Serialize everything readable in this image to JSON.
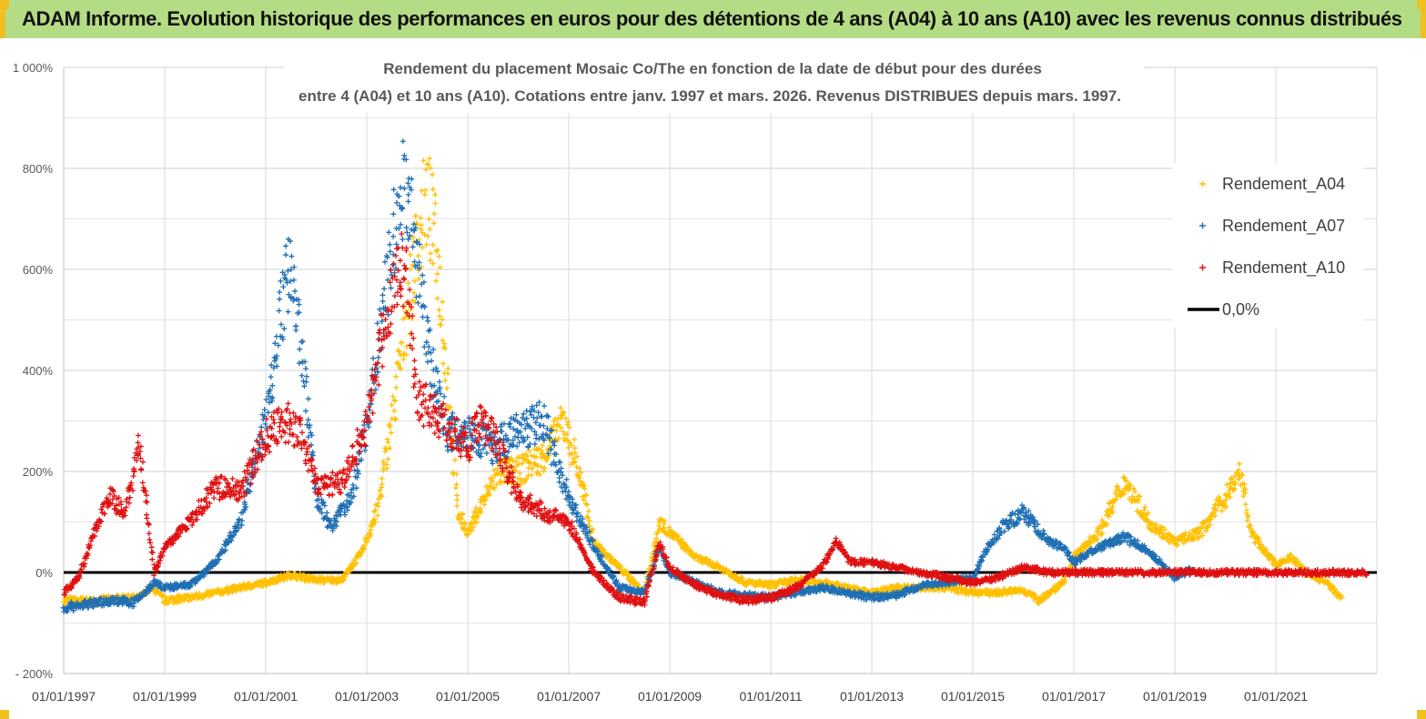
{
  "banner": {
    "text": "ADAM Informe. Evolution historique des performances en euros pour des détentions de 4 ans (A04) à 10 ans (A10) avec les revenus connus distribués"
  },
  "chart_data": {
    "type": "scatter",
    "title_lines": [
      "Rendement du placement Mosaic Co/The en fonction de la date de début pour des durées",
      "entre 4 (A04) et 10 ans (A10). Cotations entre janv. 1997 et mars. 2026. Revenus DISTRIBUES depuis mars. 1997."
    ],
    "xlabel": "",
    "ylabel": "",
    "xlim": [
      1997.0,
      2023.0
    ],
    "ylim": [
      -200,
      1000
    ],
    "x_ticks": [
      1997,
      1999,
      2001,
      2003,
      2005,
      2007,
      2009,
      2011,
      2013,
      2015,
      2017,
      2019,
      2021
    ],
    "x_tick_labels": [
      "01/01/1997",
      "01/01/1999",
      "01/01/2001",
      "01/01/2003",
      "01/01/2005",
      "01/01/2007",
      "01/01/2009",
      "01/01/2011",
      "01/01/2013",
      "01/01/2015",
      "01/01/2017",
      "01/01/2019",
      "01/01/2021"
    ],
    "y_ticks": [
      -200,
      0,
      200,
      400,
      600,
      800,
      1000
    ],
    "y_tick_labels": [
      "- 200%",
      "0%",
      "200%",
      "400%",
      "600%",
      "800%",
      "1 000%"
    ],
    "legend_position": "top-right",
    "series": [
      {
        "name": "Rendement_A04",
        "color": "#ffc000",
        "marker": "+",
        "points": [
          [
            1997.0,
            -55
          ],
          [
            1997.5,
            -58
          ],
          [
            1998.0,
            -52
          ],
          [
            1998.5,
            -50
          ],
          [
            1998.75,
            -30
          ],
          [
            1999.0,
            -55
          ],
          [
            1999.5,
            -50
          ],
          [
            2000.0,
            -40
          ],
          [
            2000.5,
            -30
          ],
          [
            2001.0,
            -20
          ],
          [
            2001.5,
            -5
          ],
          [
            2002.0,
            -15
          ],
          [
            2002.5,
            -15
          ],
          [
            2002.9,
            40
          ],
          [
            2003.2,
            120
          ],
          [
            2003.5,
            300
          ],
          [
            2003.8,
            520
          ],
          [
            2004.0,
            650
          ],
          [
            2004.2,
            750
          ],
          [
            2004.4,
            620
          ],
          [
            2004.6,
            380
          ],
          [
            2004.8,
            120
          ],
          [
            2005.0,
            80
          ],
          [
            2005.3,
            140
          ],
          [
            2005.6,
            200
          ],
          [
            2006.0,
            200
          ],
          [
            2006.5,
            230
          ],
          [
            2006.9,
            300
          ],
          [
            2007.2,
            200
          ],
          [
            2007.5,
            60
          ],
          [
            2008.0,
            10
          ],
          [
            2008.5,
            -40
          ],
          [
            2008.8,
            100
          ],
          [
            2009.0,
            80
          ],
          [
            2009.5,
            30
          ],
          [
            2010.0,
            10
          ],
          [
            2010.5,
            -20
          ],
          [
            2011.0,
            -25
          ],
          [
            2011.5,
            -15
          ],
          [
            2012.0,
            -20
          ],
          [
            2012.5,
            -30
          ],
          [
            2013.0,
            -40
          ],
          [
            2013.5,
            -30
          ],
          [
            2014.0,
            -30
          ],
          [
            2014.5,
            -30
          ],
          [
            2015.0,
            -40
          ],
          [
            2015.5,
            -40
          ],
          [
            2016.0,
            -35
          ],
          [
            2016.3,
            -55
          ],
          [
            2016.8,
            -20
          ],
          [
            2017.0,
            30
          ],
          [
            2017.5,
            80
          ],
          [
            2018.0,
            180
          ],
          [
            2018.5,
            100
          ],
          [
            2019.0,
            60
          ],
          [
            2019.5,
            80
          ],
          [
            2020.0,
            150
          ],
          [
            2020.3,
            200
          ],
          [
            2020.5,
            80
          ],
          [
            2020.8,
            40
          ],
          [
            2021.0,
            15
          ],
          [
            2021.3,
            30
          ],
          [
            2021.6,
            0
          ],
          [
            2022.0,
            -20
          ],
          [
            2022.3,
            -50
          ]
        ]
      },
      {
        "name": "Rendement_A07",
        "color": "#1f6fb4",
        "marker": "+",
        "points": [
          [
            1997.0,
            -70
          ],
          [
            1997.5,
            -62
          ],
          [
            1998.0,
            -55
          ],
          [
            1998.4,
            -60
          ],
          [
            1998.8,
            -20
          ],
          [
            1999.0,
            -30
          ],
          [
            1999.5,
            -25
          ],
          [
            2000.0,
            20
          ],
          [
            2000.5,
            100
          ],
          [
            2001.0,
            300
          ],
          [
            2001.3,
            520
          ],
          [
            2001.5,
            620
          ],
          [
            2001.7,
            450
          ],
          [
            2002.0,
            150
          ],
          [
            2002.3,
            90
          ],
          [
            2002.7,
            150
          ],
          [
            2003.0,
            300
          ],
          [
            2003.3,
            500
          ],
          [
            2003.6,
            700
          ],
          [
            2003.8,
            780
          ],
          [
            2004.0,
            600
          ],
          [
            2004.3,
            400
          ],
          [
            2004.6,
            280
          ],
          [
            2005.0,
            280
          ],
          [
            2005.5,
            250
          ],
          [
            2006.0,
            280
          ],
          [
            2006.5,
            300
          ],
          [
            2007.0,
            150
          ],
          [
            2007.5,
            50
          ],
          [
            2008.0,
            -30
          ],
          [
            2008.5,
            -40
          ],
          [
            2008.8,
            50
          ],
          [
            2009.0,
            0
          ],
          [
            2009.5,
            -20
          ],
          [
            2010.0,
            -40
          ],
          [
            2010.5,
            -45
          ],
          [
            2011.0,
            -50
          ],
          [
            2011.5,
            -40
          ],
          [
            2012.0,
            -30
          ],
          [
            2012.5,
            -40
          ],
          [
            2013.0,
            -50
          ],
          [
            2013.5,
            -45
          ],
          [
            2014.0,
            -25
          ],
          [
            2014.5,
            -20
          ],
          [
            2015.0,
            -10
          ],
          [
            2015.3,
            50
          ],
          [
            2015.6,
            90
          ],
          [
            2016.0,
            120
          ],
          [
            2016.5,
            60
          ],
          [
            2016.8,
            50
          ],
          [
            2017.0,
            20
          ],
          [
            2017.5,
            50
          ],
          [
            2018.0,
            70
          ],
          [
            2018.5,
            40
          ],
          [
            2019.0,
            -10
          ],
          [
            2019.3,
            5
          ]
        ]
      },
      {
        "name": "Rendement_A10",
        "color": "#e01010",
        "marker": "+",
        "points": [
          [
            1997.0,
            -40
          ],
          [
            1997.3,
            -10
          ],
          [
            1997.6,
            80
          ],
          [
            1997.9,
            150
          ],
          [
            1998.2,
            120
          ],
          [
            1998.5,
            250
          ],
          [
            1998.8,
            0
          ],
          [
            1999.0,
            50
          ],
          [
            1999.5,
            100
          ],
          [
            2000.0,
            170
          ],
          [
            2000.5,
            160
          ],
          [
            2001.0,
            270
          ],
          [
            2001.5,
            300
          ],
          [
            2001.8,
            250
          ],
          [
            2002.0,
            170
          ],
          [
            2002.5,
            180
          ],
          [
            2002.8,
            250
          ],
          [
            2003.0,
            300
          ],
          [
            2003.3,
            450
          ],
          [
            2003.6,
            600
          ],
          [
            2003.8,
            580
          ],
          [
            2004.0,
            350
          ],
          [
            2004.5,
            300
          ],
          [
            2005.0,
            250
          ],
          [
            2005.3,
            300
          ],
          [
            2005.6,
            250
          ],
          [
            2006.0,
            150
          ],
          [
            2006.5,
            120
          ],
          [
            2007.0,
            100
          ],
          [
            2007.5,
            0
          ],
          [
            2008.0,
            -50
          ],
          [
            2008.5,
            -60
          ],
          [
            2008.8,
            60
          ],
          [
            2009.0,
            10
          ],
          [
            2009.5,
            -25
          ],
          [
            2010.0,
            -45
          ],
          [
            2010.5,
            -55
          ],
          [
            2011.0,
            -50
          ],
          [
            2011.5,
            -30
          ],
          [
            2012.0,
            10
          ],
          [
            2012.3,
            60
          ],
          [
            2012.6,
            20
          ],
          [
            2013.0,
            20
          ],
          [
            2013.5,
            10
          ],
          [
            2014.0,
            0
          ],
          [
            2014.5,
            -10
          ],
          [
            2015.0,
            -20
          ],
          [
            2015.5,
            -10
          ],
          [
            2016.0,
            10
          ],
          [
            2016.5,
            0
          ],
          [
            2017.0,
            0
          ],
          [
            2018.0,
            0
          ],
          [
            2019.0,
            0
          ],
          [
            2020.0,
            0
          ],
          [
            2021.0,
            0
          ],
          [
            2022.0,
            0
          ],
          [
            2022.8,
            0
          ]
        ]
      },
      {
        "name": "0,0%",
        "color": "#000000",
        "type": "line",
        "x": [
          1997.0,
          2023.0
        ],
        "values": [
          0,
          0
        ]
      }
    ]
  }
}
